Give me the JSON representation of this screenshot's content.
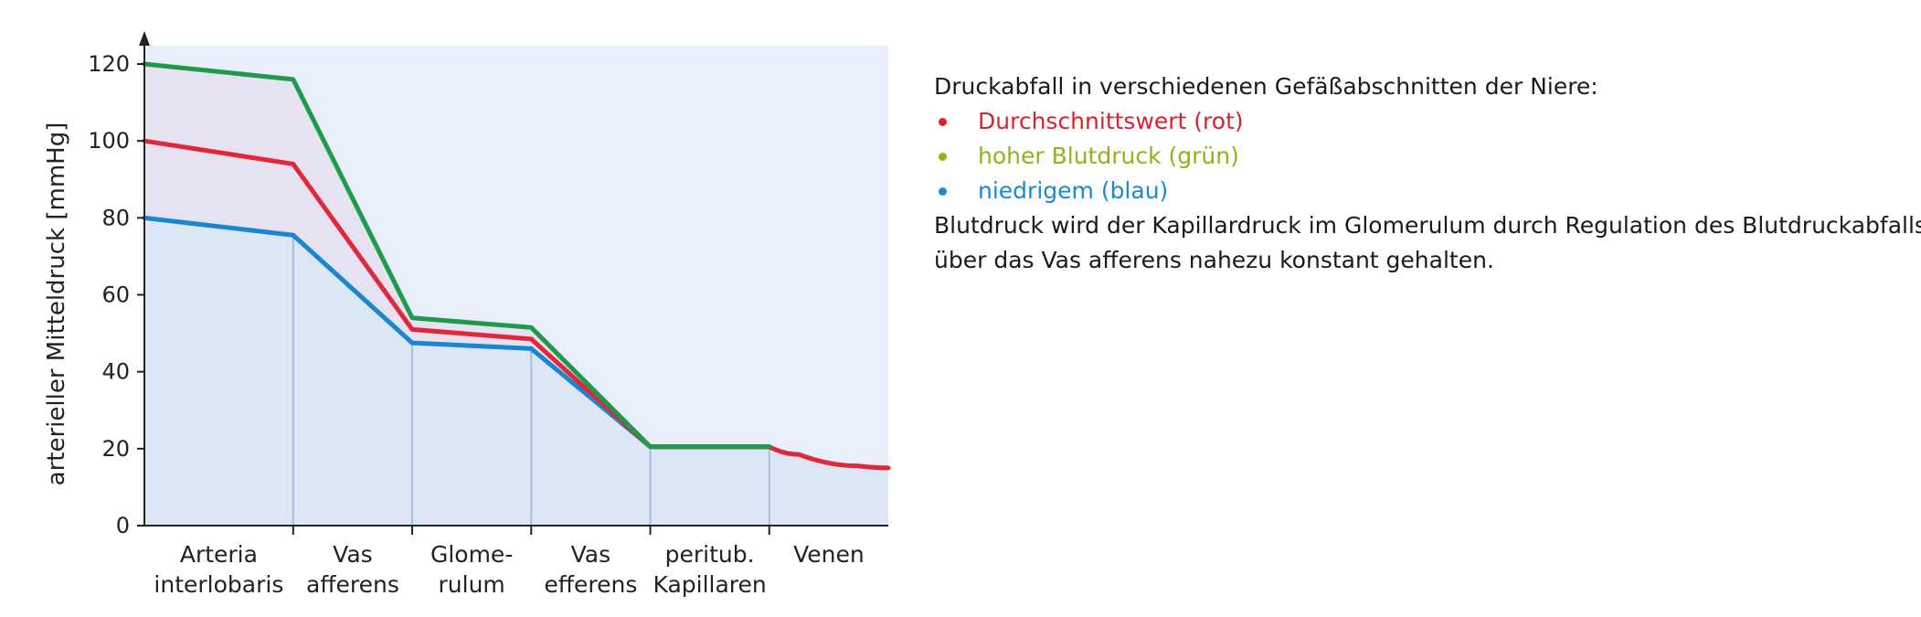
{
  "chart_data": {
    "type": "line",
    "ylabel": "arterieller Mitteldruck [mmHg]",
    "xlabel": "",
    "ylim": [
      0,
      125
    ],
    "yticks": [
      0,
      20,
      40,
      60,
      80,
      100,
      120
    ],
    "categories": [
      {
        "line1": "Arteria",
        "line2": "interlobaris"
      },
      {
        "line1": "Vas",
        "line2": "afferens"
      },
      {
        "line1": "Glome-",
        "line2": "rulum"
      },
      {
        "line1": "Vas",
        "line2": "efferens"
      },
      {
        "line1": "peritub.",
        "line2": "Kapillaren"
      },
      {
        "line1": "Venen",
        "line2": ""
      }
    ],
    "x": [
      0,
      1.25,
      2.25,
      3.25,
      4.25,
      5.25,
      5.5,
      6.0,
      6.25
    ],
    "series": [
      {
        "key": "hoch",
        "color": "#1f9a4a",
        "values": [
          120,
          116,
          54,
          51.5,
          20.5,
          20.5,
          null,
          null,
          null
        ]
      },
      {
        "key": "mittel",
        "color": "#e0283a",
        "values": [
          100,
          94,
          51,
          48.5,
          20.5,
          20.5,
          18.5,
          15.5,
          15
        ]
      },
      {
        "key": "niedrig",
        "color": "#1a86d0",
        "values": [
          80,
          75.5,
          47.5,
          46,
          20.5,
          20.5,
          null,
          null,
          null
        ]
      }
    ],
    "grid": false,
    "background_colors": {
      "plot": "#e9effa",
      "area_low": "#dde6f4",
      "area_mid": "#e6e2f1",
      "divider": "#a9bde0"
    }
  },
  "notes": {
    "heading": "Druckabfall in verschiedenen Gefäßabschnitten der Niere:",
    "items": [
      {
        "label": "Durchschnittswert (rot)",
        "color": "#d8232e"
      },
      {
        "label": "hoher Blutdruck (grün)",
        "color": "#8db51a"
      },
      {
        "label": "niedrigem (blau)",
        "color": "#1b88d6"
      }
    ],
    "text_line1": "Blutdruck wird der Kapillardruck im Glomerulum durch Regulation des Blutdruckabfalls",
    "text_line2": "über das Vas afferens nahezu konstant gehalten."
  }
}
